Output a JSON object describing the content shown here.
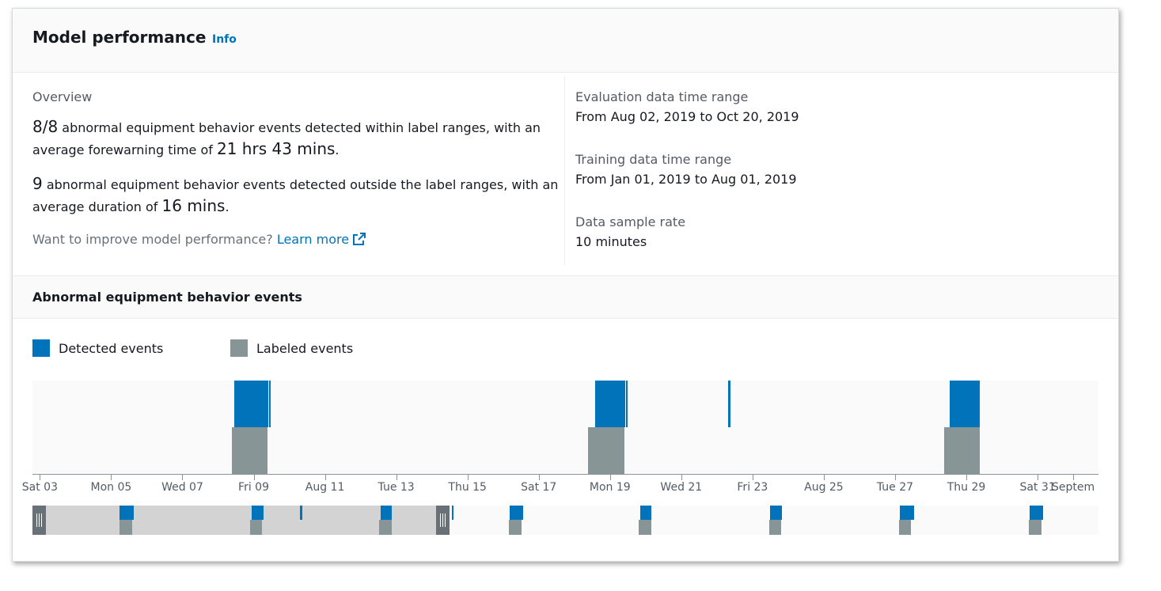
{
  "header": {
    "title": "Model performance",
    "info_link": "Info"
  },
  "overview": {
    "label": "Overview",
    "detected_within": {
      "count": "8/8",
      "text_a": " abnormal equipment behavior events detected within label ranges, with an average forewarning time of ",
      "time": "21 hrs 43 mins",
      "text_b": "."
    },
    "detected_outside": {
      "count": "9",
      "text_a": " abnormal equipment behavior events detected outside the label ranges, with an average duration of ",
      "time": "16 mins",
      "text_b": "."
    },
    "improve_text": "Want to improve model performance?",
    "learn_more": "Learn more",
    "learn_more_icon": "external-link-icon"
  },
  "details": [
    {
      "label": "Evaluation data time range",
      "value": "From Aug 02, 2019 to Oct 20, 2019"
    },
    {
      "label": "Training data time range",
      "value": "From Jan 01, 2019 to Aug 01, 2019"
    },
    {
      "label": "Data sample rate",
      "value": "10 minutes"
    }
  ],
  "section": {
    "title": "Abnormal equipment behavior events"
  },
  "colors": {
    "detected": "#0073bb",
    "labeled": "#879596",
    "brush_selection": "#d3d3d3",
    "handle": "#687078"
  },
  "chart_data": {
    "type": "timeline",
    "legend": [
      {
        "name": "Detected events",
        "color": "#0073bb"
      },
      {
        "name": "Labeled events",
        "color": "#879596"
      }
    ],
    "legend_placement": "top-left",
    "x_range": [
      "2019-08-02T19:00",
      "2019-09-01T17:00"
    ],
    "tick_labels": [
      {
        "date": "2019-08-03",
        "label": "Sat 03"
      },
      {
        "date": "2019-08-05",
        "label": "Mon 05"
      },
      {
        "date": "2019-08-07",
        "label": "Wed 07"
      },
      {
        "date": "2019-08-09",
        "label": "Fri 09"
      },
      {
        "date": "2019-08-11",
        "label": "Aug 11"
      },
      {
        "date": "2019-08-13",
        "label": "Tue 13"
      },
      {
        "date": "2019-08-15",
        "label": "Thu 15"
      },
      {
        "date": "2019-08-17",
        "label": "Sat 17"
      },
      {
        "date": "2019-08-19",
        "label": "Mon 19"
      },
      {
        "date": "2019-08-21",
        "label": "Wed 21"
      },
      {
        "date": "2019-08-23",
        "label": "Fri 23"
      },
      {
        "date": "2019-08-25",
        "label": "Aug 25"
      },
      {
        "date": "2019-08-27",
        "label": "Tue 27"
      },
      {
        "date": "2019-08-29",
        "label": "Thu 29"
      },
      {
        "date": "2019-08-31",
        "label": "Sat 31"
      },
      {
        "date": "2019-09-01",
        "label": "Septem"
      }
    ],
    "detected_events": [
      [
        "2019-08-08T11:00",
        "2019-08-09T10:00"
      ],
      [
        "2019-08-09T10:20",
        "2019-08-09T11:40"
      ],
      [
        "2019-08-18T14:00",
        "2019-08-19T10:30"
      ],
      [
        "2019-08-19T10:40",
        "2019-08-19T11:20"
      ],
      [
        "2019-08-22T07:30",
        "2019-08-22T09:00"
      ],
      [
        "2019-08-28T12:40",
        "2019-08-29T09:00"
      ]
    ],
    "labeled_events": [
      [
        "2019-08-08T09:30",
        "2019-08-09T09:30"
      ],
      [
        "2019-08-18T09:00",
        "2019-08-19T09:30"
      ],
      [
        "2019-08-28T09:00",
        "2019-08-29T09:00"
      ]
    ],
    "navigator": {
      "x_range": [
        "2019-08-02T00:00",
        "2019-10-20T00:00"
      ],
      "selection": [
        "2019-08-02T00:00",
        "2019-09-01T22:00"
      ],
      "detected_events": [
        [
          "2019-08-08T11:00",
          "2019-08-09T12:00"
        ],
        [
          "2019-08-18T06:00",
          "2019-08-19T03:00"
        ],
        [
          "2019-08-21T20:00",
          "2019-08-22T00:00"
        ],
        [
          "2019-08-27T19:00",
          "2019-08-28T15:00"
        ],
        [
          "2019-09-02T02:00",
          "2019-09-02T05:00"
        ],
        [
          "2019-09-06T09:00",
          "2019-09-07T09:00"
        ],
        [
          "2019-09-16T01:00",
          "2019-09-16T21:00"
        ],
        [
          "2019-09-25T16:00",
          "2019-09-26T13:00"
        ],
        [
          "2019-10-05T07:00",
          "2019-10-06T08:00"
        ],
        [
          "2019-10-14T22:00",
          "2019-10-15T22:00"
        ]
      ],
      "labeled_events": [
        [
          "2019-08-08T11:00",
          "2019-08-09T09:00"
        ],
        [
          "2019-08-18T03:00",
          "2019-08-19T00:00"
        ],
        [
          "2019-08-27T17:00",
          "2019-08-28T15:00"
        ],
        [
          "2019-09-06T07:00",
          "2019-09-07T06:00"
        ],
        [
          "2019-09-15T22:00",
          "2019-09-16T21:00"
        ],
        [
          "2019-09-25T14:00",
          "2019-09-26T11:00"
        ],
        [
          "2019-10-05T05:00",
          "2019-10-06T02:00"
        ],
        [
          "2019-10-14T20:00",
          "2019-10-15T18:00"
        ]
      ]
    }
  }
}
